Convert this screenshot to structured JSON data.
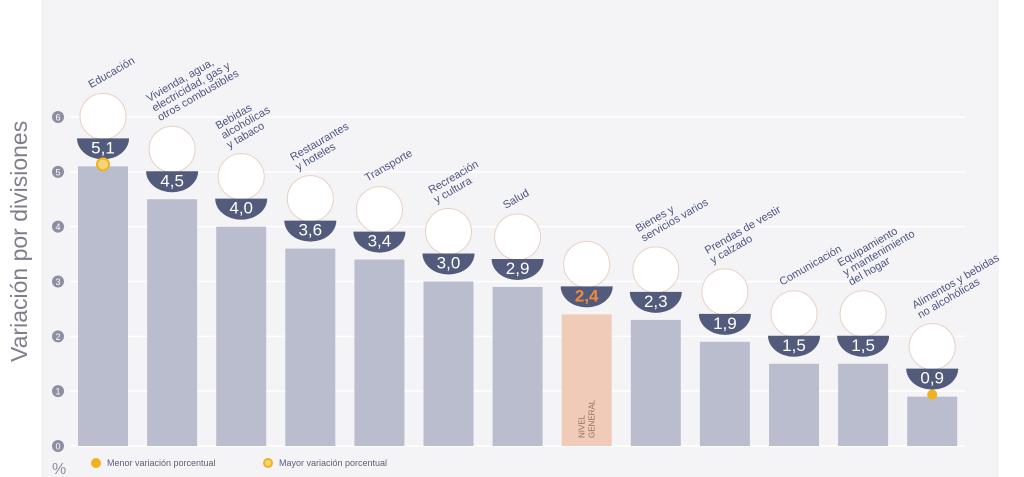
{
  "chart_data": {
    "type": "bar",
    "ylabel": "Variación por divisiones",
    "unit": "%",
    "ylim": [
      0,
      6
    ],
    "yticks": [
      0,
      1,
      2,
      3,
      4,
      5,
      6
    ],
    "grid": true,
    "categories": [
      [
        "Educación"
      ],
      [
        "Vivienda, agua,",
        "electricidad, gas y",
        "otros combustibles"
      ],
      [
        "Bebidas",
        "alcohólicas",
        "y tabaco"
      ],
      [
        "Restaurantes",
        "y hoteles"
      ],
      [
        "Transporte"
      ],
      [
        "Recreación",
        "y cultura"
      ],
      [
        "Salud"
      ],
      [],
      [
        "Bienes y",
        "servicios varios"
      ],
      [
        "Prendas de vestir",
        "y calzado"
      ],
      [
        "Comunicación"
      ],
      [
        "Equipamiento",
        "y mantenimiento",
        "del hogar"
      ],
      [
        "Alimentos y bebidas",
        "no alcohólicas"
      ]
    ],
    "values": [
      5.1,
      4.5,
      4.0,
      3.6,
      3.4,
      3.0,
      2.9,
      2.4,
      2.3,
      1.9,
      1.5,
      1.5,
      0.9
    ],
    "value_labels": [
      "5,1",
      "4,5",
      "4,0",
      "3,6",
      "3,4",
      "3,0",
      "2,9",
      "2,4",
      "2,3",
      "1,9",
      "1,5",
      "1,5",
      "0,9"
    ],
    "highlight": {
      "index": 7,
      "label": [
        "NIVEL",
        "GENERAL"
      ],
      "bar_color": "#efcbb8",
      "value_color": "#f08a3b"
    },
    "markers": {
      "max_index": 0,
      "min_index": 12
    },
    "legend": [
      {
        "label": "Menor variación porcentual",
        "style": "filled"
      },
      {
        "label": "Mayor variación porcentual",
        "style": "ring"
      }
    ],
    "icons": [
      "notebook-pencil-icon",
      "lightbulb-tools-icon",
      "wine-bottle-icon",
      "plate-cutlery-icon",
      "bus-sube-card-icon",
      "sun-umbrella-icon",
      "first-aid-icon",
      "shopping-bag-icon",
      "comb-scissors-icon",
      "tshirt-shoe-icon",
      "smartphone-icon",
      "air-conditioner-icon",
      "chicken-leg-icon"
    ],
    "colors": {
      "bar": "#b9bdce",
      "badge": "#525b7c",
      "label": "#4d5580",
      "grid": "#ffffff",
      "background": "#f4f3f6",
      "marker": "#f0b21c",
      "axis_text": "#8c8fa0"
    }
  }
}
